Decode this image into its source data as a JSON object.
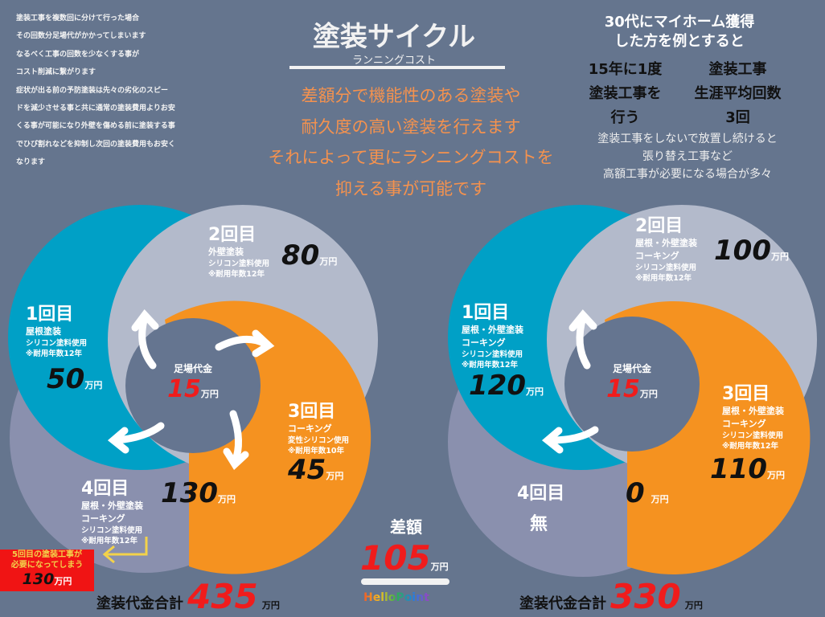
{
  "intro_lines": [
    "塗装工事を複数回に分けて行った場合",
    "その回数分足場代がかかってしまいます",
    "なるべく工事の回数を少なくする事が",
    "コスト削減に繋がります",
    "症状が出る前の予防塗装は先々の劣化のスピー",
    "ドを減少させる事と共に通常の塗装費用よりお安",
    "くる事が可能になり外壁を傷める前に塗装する事",
    "でひび割れなどを抑制し次回の塗装費用もお安く",
    "なります"
  ],
  "title": "塗装サイクル",
  "subtitle": "ランニングコスト",
  "message_lines": [
    "差額分で機能性のある塗装や",
    "耐久度の高い塗装を行えます",
    "それによって更にランニングコストを",
    "抑える事が可能です"
  ],
  "right_header": [
    "30代にマイホーム獲得",
    "した方を例とすると"
  ],
  "right_col1": [
    "15年に1度",
    "塗装工事を",
    "行う"
  ],
  "right_col2": [
    "塗装工事",
    "生涯平均回数",
    "3回"
  ],
  "right_note": [
    "塗装工事をしないで放置し続けると",
    "張り替え工事など",
    "高額工事が必要になる場合が多々"
  ],
  "colors": {
    "bg": "#65758e",
    "teal": "#00a0c6",
    "light": "#b3bacb",
    "orange": "#f59220",
    "purple": "#8a90ae",
    "center": "#657590",
    "red": "#f01c1c"
  },
  "unit": "万円",
  "left": {
    "center_label": "足場代金",
    "center_amount": "15",
    "c1": {
      "n": "1回目",
      "t": "屋根塗装",
      "s1": "シリコン塗料使用",
      "s2": "※耐用年数12年",
      "amt": "50"
    },
    "c2": {
      "n": "2回目",
      "t": "外壁塗装",
      "s1": "シリコン塗料使用",
      "s2": "※耐用年数12年",
      "amt": "80"
    },
    "c3": {
      "n": "3回目",
      "t": "コーキング",
      "s1": "変性シリコン使用",
      "s2": "※耐用年数10年",
      "amt": "45"
    },
    "c4": {
      "n": "4回目",
      "t1": "屋根・外壁塗装",
      "t2": "コーキング",
      "s1": "シリコン塗料使用",
      "s2": "※耐用年数12年",
      "amt": "130"
    },
    "warning": {
      "l1": "5回目の塗装工事が",
      "l2": "必要になってしまう",
      "amt": "130"
    },
    "total_label": "塗装代金合計",
    "total": "435"
  },
  "right": {
    "center_label": "足場代金",
    "center_amount": "15",
    "c1": {
      "n": "1回目",
      "t1": "屋根・外壁塗装",
      "t2": "コーキング",
      "s1": "シリコン塗料使用",
      "s2": "※耐用年数12年",
      "amt": "120"
    },
    "c2": {
      "n": "2回目",
      "t1": "屋根・外壁塗装",
      "t2": "コーキング",
      "s1": "シリコン塗料使用",
      "s2": "※耐用年数12年",
      "amt": "100"
    },
    "c3": {
      "n": "3回目",
      "t1": "屋根・外壁塗装",
      "t2": "コーキング",
      "s1": "シリコン塗料使用",
      "s2": "※耐用年数12年",
      "amt": "110"
    },
    "c4": {
      "n": "4回目",
      "t": "無",
      "amt": "0"
    },
    "total_label": "塗装代金合計",
    "total": "330"
  },
  "diff": {
    "label": "差額",
    "amount": "105"
  },
  "logo": "HelloPoint"
}
